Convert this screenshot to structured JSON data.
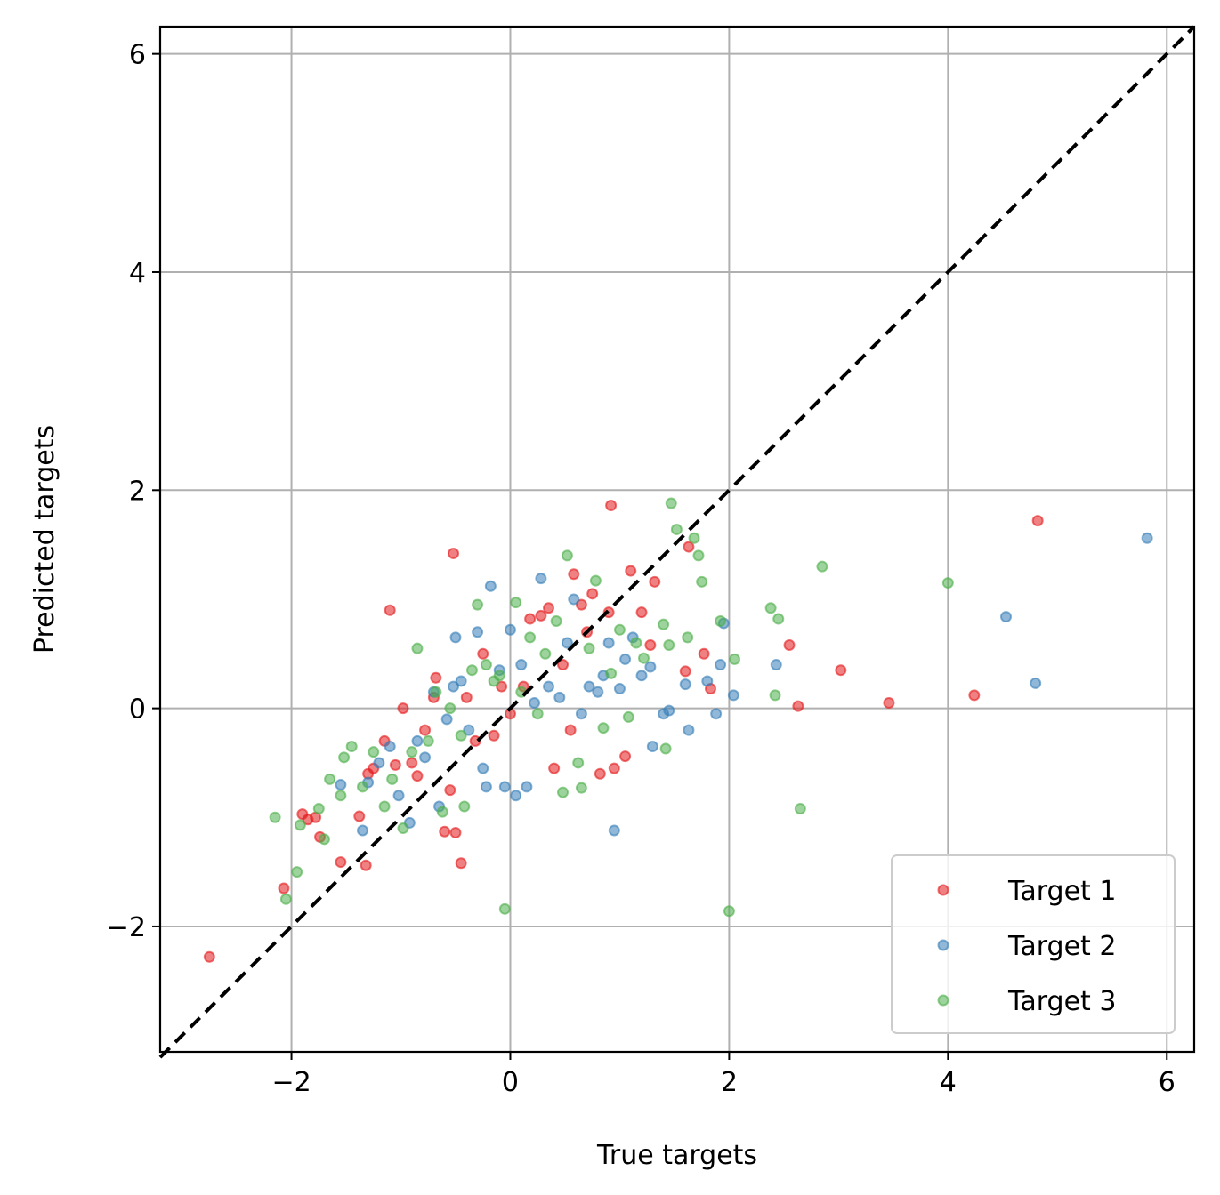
{
  "chart_data": {
    "type": "scatter",
    "xlabel": "True targets",
    "ylabel": "Predicted targets",
    "xlim": [
      -3.2,
      6.25
    ],
    "ylim": [
      -3.15,
      6.25
    ],
    "xticks": [
      -2,
      0,
      2,
      4,
      6
    ],
    "yticks": [
      -2,
      0,
      2,
      4,
      6
    ],
    "xtick_labels": [
      "−2",
      "0",
      "2",
      "4",
      "6"
    ],
    "ytick_labels": [
      "−2",
      "0",
      "2",
      "4",
      "6"
    ],
    "grid": true,
    "legend_position": "bottom-right",
    "reference_line": {
      "style": "dashed",
      "color": "#000000",
      "from": [
        -3.2,
        -3.2
      ],
      "to": [
        6.25,
        6.25
      ]
    },
    "series": [
      {
        "name": "Target 1",
        "color": "#e41a1c",
        "points": [
          [
            -2.75,
            -2.28
          ],
          [
            -2.07,
            -1.65
          ],
          [
            -1.9,
            -0.97
          ],
          [
            -1.85,
            -1.02
          ],
          [
            -1.78,
            -1.0
          ],
          [
            -1.74,
            -1.18
          ],
          [
            -1.55,
            -1.41
          ],
          [
            -1.38,
            -0.99
          ],
          [
            -1.32,
            -1.44
          ],
          [
            -1.3,
            -0.6
          ],
          [
            -1.25,
            -0.55
          ],
          [
            -1.15,
            -0.3
          ],
          [
            -1.1,
            0.9
          ],
          [
            -1.05,
            -0.52
          ],
          [
            -0.98,
            0.0
          ],
          [
            -0.9,
            -0.5
          ],
          [
            -0.85,
            -0.62
          ],
          [
            -0.78,
            -0.2
          ],
          [
            -0.7,
            0.1
          ],
          [
            -0.68,
            0.28
          ],
          [
            -0.6,
            -1.13
          ],
          [
            -0.55,
            -0.75
          ],
          [
            -0.52,
            1.42
          ],
          [
            -0.5,
            -1.14
          ],
          [
            -0.45,
            -1.42
          ],
          [
            -0.4,
            0.1
          ],
          [
            -0.32,
            -0.3
          ],
          [
            -0.25,
            0.5
          ],
          [
            -0.15,
            -0.25
          ],
          [
            -0.08,
            0.2
          ],
          [
            0.0,
            -0.05
          ],
          [
            0.12,
            0.2
          ],
          [
            0.18,
            0.82
          ],
          [
            0.28,
            0.85
          ],
          [
            0.35,
            0.92
          ],
          [
            0.4,
            -0.55
          ],
          [
            0.48,
            0.4
          ],
          [
            0.55,
            -0.2
          ],
          [
            0.58,
            1.23
          ],
          [
            0.65,
            0.95
          ],
          [
            0.7,
            0.7
          ],
          [
            0.75,
            1.05
          ],
          [
            0.82,
            -0.6
          ],
          [
            0.9,
            0.88
          ],
          [
            0.92,
            1.86
          ],
          [
            0.95,
            -0.55
          ],
          [
            1.05,
            -0.44
          ],
          [
            1.1,
            1.26
          ],
          [
            1.2,
            0.88
          ],
          [
            1.28,
            0.58
          ],
          [
            1.32,
            1.16
          ],
          [
            1.6,
            0.34
          ],
          [
            1.63,
            1.48
          ],
          [
            1.77,
            0.5
          ],
          [
            1.83,
            0.18
          ],
          [
            2.55,
            0.58
          ],
          [
            2.63,
            0.02
          ],
          [
            3.02,
            0.35
          ],
          [
            3.46,
            0.05
          ],
          [
            4.24,
            0.12
          ],
          [
            4.82,
            1.72
          ]
        ]
      },
      {
        "name": "Target 2",
        "color": "#377eb8",
        "points": [
          [
            -1.55,
            -0.7
          ],
          [
            -1.35,
            -1.12
          ],
          [
            -1.3,
            -0.68
          ],
          [
            -1.2,
            -0.5
          ],
          [
            -1.1,
            -0.35
          ],
          [
            -1.02,
            -0.8
          ],
          [
            -0.92,
            -1.05
          ],
          [
            -0.85,
            -0.3
          ],
          [
            -0.78,
            -0.45
          ],
          [
            -0.7,
            0.15
          ],
          [
            -0.65,
            -0.9
          ],
          [
            -0.58,
            -0.1
          ],
          [
            -0.52,
            0.2
          ],
          [
            -0.5,
            0.65
          ],
          [
            -0.45,
            0.25
          ],
          [
            -0.38,
            -0.2
          ],
          [
            -0.3,
            0.7
          ],
          [
            -0.25,
            -0.55
          ],
          [
            -0.22,
            -0.72
          ],
          [
            -0.18,
            1.12
          ],
          [
            -0.1,
            0.35
          ],
          [
            -0.05,
            -0.72
          ],
          [
            0.0,
            0.72
          ],
          [
            0.05,
            -0.8
          ],
          [
            0.1,
            0.4
          ],
          [
            0.15,
            -0.72
          ],
          [
            0.22,
            0.05
          ],
          [
            0.28,
            1.19
          ],
          [
            0.35,
            0.2
          ],
          [
            0.45,
            0.1
          ],
          [
            0.52,
            0.6
          ],
          [
            0.58,
            1.0
          ],
          [
            0.65,
            -0.05
          ],
          [
            0.72,
            0.2
          ],
          [
            0.8,
            0.15
          ],
          [
            0.85,
            0.3
          ],
          [
            0.9,
            0.6
          ],
          [
            0.95,
            -1.12
          ],
          [
            1.0,
            0.18
          ],
          [
            1.05,
            0.45
          ],
          [
            1.12,
            0.65
          ],
          [
            1.2,
            0.3
          ],
          [
            1.28,
            0.38
          ],
          [
            1.3,
            -0.35
          ],
          [
            1.4,
            -0.05
          ],
          [
            1.45,
            -0.02
          ],
          [
            1.6,
            0.22
          ],
          [
            1.63,
            -0.2
          ],
          [
            1.8,
            0.25
          ],
          [
            1.88,
            -0.05
          ],
          [
            1.92,
            0.4
          ],
          [
            1.95,
            0.78
          ],
          [
            2.04,
            0.12
          ],
          [
            2.43,
            0.4
          ],
          [
            4.53,
            0.84
          ],
          [
            4.8,
            0.23
          ],
          [
            5.82,
            1.56
          ]
        ]
      },
      {
        "name": "Target 3",
        "color": "#4daf4a",
        "points": [
          [
            -2.15,
            -1.0
          ],
          [
            -2.05,
            -1.75
          ],
          [
            -1.95,
            -1.5
          ],
          [
            -1.92,
            -1.07
          ],
          [
            -1.75,
            -0.92
          ],
          [
            -1.7,
            -1.2
          ],
          [
            -1.65,
            -0.65
          ],
          [
            -1.55,
            -0.8
          ],
          [
            -1.52,
            -0.45
          ],
          [
            -1.45,
            -0.35
          ],
          [
            -1.35,
            -0.72
          ],
          [
            -1.25,
            -0.4
          ],
          [
            -1.15,
            -0.9
          ],
          [
            -1.08,
            -0.65
          ],
          [
            -0.98,
            -1.1
          ],
          [
            -0.9,
            -0.4
          ],
          [
            -0.85,
            0.55
          ],
          [
            -0.75,
            -0.3
          ],
          [
            -0.68,
            0.15
          ],
          [
            -0.62,
            -0.95
          ],
          [
            -0.55,
            0.0
          ],
          [
            -0.45,
            -0.25
          ],
          [
            -0.42,
            -0.9
          ],
          [
            -0.35,
            0.35
          ],
          [
            -0.3,
            0.95
          ],
          [
            -0.22,
            0.4
          ],
          [
            -0.15,
            0.25
          ],
          [
            -0.1,
            0.3
          ],
          [
            -0.05,
            -1.84
          ],
          [
            0.05,
            0.97
          ],
          [
            0.1,
            0.15
          ],
          [
            0.18,
            0.65
          ],
          [
            0.25,
            -0.05
          ],
          [
            0.32,
            0.5
          ],
          [
            0.42,
            0.8
          ],
          [
            0.48,
            -0.77
          ],
          [
            0.52,
            1.4
          ],
          [
            0.62,
            -0.5
          ],
          [
            0.65,
            -0.73
          ],
          [
            0.72,
            0.55
          ],
          [
            0.78,
            1.17
          ],
          [
            0.85,
            -0.18
          ],
          [
            0.92,
            0.32
          ],
          [
            1.0,
            0.72
          ],
          [
            1.08,
            -0.08
          ],
          [
            1.15,
            0.6
          ],
          [
            1.22,
            0.46
          ],
          [
            1.4,
            0.77
          ],
          [
            1.42,
            -0.37
          ],
          [
            1.45,
            0.58
          ],
          [
            1.47,
            1.88
          ],
          [
            1.52,
            1.64
          ],
          [
            1.62,
            0.65
          ],
          [
            1.68,
            1.56
          ],
          [
            1.72,
            1.4
          ],
          [
            1.75,
            1.16
          ],
          [
            1.92,
            0.8
          ],
          [
            2.0,
            -1.86
          ],
          [
            2.05,
            0.45
          ],
          [
            2.38,
            0.92
          ],
          [
            2.42,
            0.12
          ],
          [
            2.45,
            0.82
          ],
          [
            2.65,
            -0.92
          ],
          [
            2.85,
            1.3
          ],
          [
            4.0,
            1.15
          ]
        ]
      }
    ]
  }
}
